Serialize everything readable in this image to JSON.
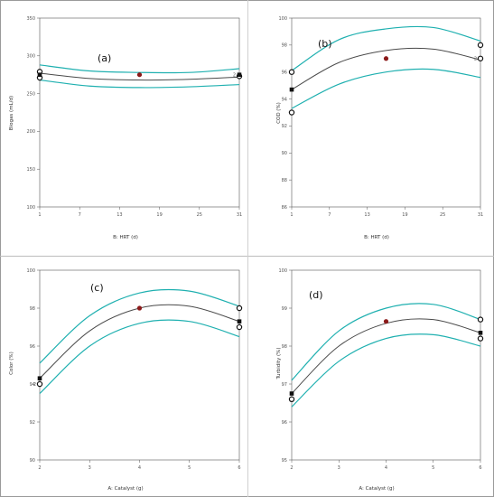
{
  "colors": {
    "fit": "#4a4a4a",
    "ci": "#1fb0b0",
    "design_point": "#8b1a1a",
    "marker": "#111111"
  },
  "chart_data": [
    {
      "type": "line",
      "panel_label": "(a)",
      "xlabel": "B: HRT (d)",
      "ylabel": "Biogas (mL/d)",
      "xlim": [
        1,
        31
      ],
      "ylim": [
        100,
        350
      ],
      "xticks": [
        1,
        7,
        13,
        19,
        25,
        31
      ],
      "yticks": [
        100,
        150,
        200,
        250,
        300,
        350
      ],
      "fit": {
        "x": [
          1,
          8.5,
          16,
          23.5,
          31
        ],
        "y": [
          277,
          270,
          268,
          269,
          272
        ]
      },
      "ci_upper": {
        "x": [
          1,
          8.5,
          16,
          23.5,
          31
        ],
        "y": [
          288,
          280,
          278,
          278,
          283
        ]
      },
      "ci_lower": {
        "x": [
          1,
          8.5,
          16,
          23.5,
          31
        ],
        "y": [
          268,
          260,
          258,
          259,
          262
        ]
      },
      "open_points": [
        [
          1,
          271
        ],
        [
          1,
          279
        ],
        [
          31,
          273
        ]
      ],
      "filled_square_points": [
        [
          1,
          275
        ],
        [
          31,
          275
        ]
      ],
      "red_points": [
        [
          16,
          275
        ]
      ],
      "point_labels": [
        {
          "x": 31,
          "y": 275,
          "text": "2",
          "side": "left"
        }
      ]
    },
    {
      "type": "line",
      "panel_label": "(b)",
      "xlabel": "B: HRT (d)",
      "ylabel": "COD (%)",
      "xlim": [
        1,
        31
      ],
      "ylim": [
        86,
        100
      ],
      "xticks": [
        1,
        7,
        13,
        19,
        25,
        31
      ],
      "yticks": [
        86,
        88,
        90,
        92,
        94,
        96,
        98,
        100
      ],
      "fit": {
        "x": [
          1,
          8.5,
          16,
          23.5,
          31
        ],
        "y": [
          94.7,
          96.7,
          97.6,
          97.7,
          96.9
        ]
      },
      "ci_upper": {
        "x": [
          1,
          8.5,
          16,
          23.5,
          31
        ],
        "y": [
          96.1,
          98.4,
          99.2,
          99.3,
          98.3
        ]
      },
      "ci_lower": {
        "x": [
          1,
          8.5,
          16,
          23.5,
          31
        ],
        "y": [
          93.3,
          95.1,
          96.0,
          96.2,
          95.6
        ]
      },
      "open_points": [
        [
          1,
          96
        ],
        [
          1,
          93
        ],
        [
          31,
          98
        ],
        [
          31,
          97
        ]
      ],
      "filled_square_points": [
        [
          1,
          94.7
        ]
      ],
      "red_points": [
        [
          16,
          97
        ]
      ],
      "point_labels": [
        {
          "x": 31,
          "y": 97,
          "text": "2",
          "side": "left"
        }
      ]
    },
    {
      "type": "line",
      "panel_label": "(c)",
      "xlabel": "A: Catalyst  (g)",
      "ylabel": "Color (%)",
      "xlim": [
        2,
        6
      ],
      "ylim": [
        90,
        100
      ],
      "xticks": [
        2,
        3,
        4,
        5,
        6
      ],
      "yticks": [
        90,
        92,
        94,
        96,
        98,
        100
      ],
      "fit": {
        "x": [
          2,
          3,
          4,
          5,
          6
        ],
        "y": [
          94.3,
          96.8,
          98.0,
          98.1,
          97.3
        ]
      },
      "ci_upper": {
        "x": [
          2,
          3,
          4,
          5,
          6
        ],
        "y": [
          95.1,
          97.6,
          98.8,
          98.9,
          98.1
        ]
      },
      "ci_lower": {
        "x": [
          2,
          3,
          4,
          5,
          6
        ],
        "y": [
          93.5,
          96.0,
          97.2,
          97.3,
          96.5
        ]
      },
      "open_points": [
        [
          2,
          94
        ],
        [
          6,
          98
        ],
        [
          6,
          97
        ]
      ],
      "filled_square_points": [
        [
          2,
          94.3
        ],
        [
          6,
          97.3
        ]
      ],
      "red_points": [
        [
          4,
          98
        ]
      ],
      "point_labels": [
        {
          "x": 2,
          "y": 94,
          "text": "2",
          "side": "left"
        }
      ]
    },
    {
      "type": "line",
      "panel_label": "(d)",
      "xlabel": "A: Catalyst  (g)",
      "ylabel": "Turbidity (%)",
      "xlim": [
        2,
        6
      ],
      "ylim": [
        95,
        100
      ],
      "xticks": [
        2,
        3,
        4,
        5,
        6
      ],
      "yticks": [
        95,
        96,
        97,
        98,
        99,
        100
      ],
      "fit": {
        "x": [
          2,
          3,
          4,
          5,
          6
        ],
        "y": [
          96.75,
          98.0,
          98.6,
          98.7,
          98.35
        ]
      },
      "ci_upper": {
        "x": [
          2,
          3,
          4,
          5,
          6
        ],
        "y": [
          97.1,
          98.4,
          99.0,
          99.1,
          98.7
        ]
      },
      "ci_lower": {
        "x": [
          2,
          3,
          4,
          5,
          6
        ],
        "y": [
          96.4,
          97.6,
          98.2,
          98.3,
          98.0
        ]
      },
      "open_points": [
        [
          2,
          96.6
        ],
        [
          6,
          98.7
        ],
        [
          6,
          98.2
        ]
      ],
      "filled_square_points": [
        [
          2,
          96.75
        ],
        [
          6,
          98.35
        ]
      ],
      "red_points": [
        [
          4,
          98.65
        ]
      ],
      "point_labels": []
    }
  ]
}
